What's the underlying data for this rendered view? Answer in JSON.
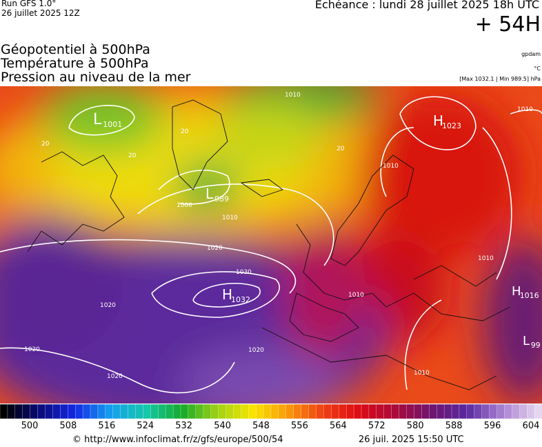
{
  "header": {
    "run": "Run GFS 1.0°",
    "run_date": "26 juillet 2025 12Z",
    "valid_time": "Echéance : lundi 28 juillet 2025 18h UTC",
    "lead": "+ 54H",
    "fields": [
      "Géopotentiel à 500hPa",
      "Température à 500hPa",
      "Pression au niveau de la mer"
    ],
    "units": [
      "gpdam",
      "°C",
      "[Max 1032.1 | Min 989.5] hPa"
    ]
  },
  "map": {
    "centers": [
      {
        "letter": "L",
        "value": "1001"
      },
      {
        "letter": "L",
        "value": "989"
      },
      {
        "letter": "H",
        "value": "1023"
      },
      {
        "letter": "H",
        "value": "1032"
      },
      {
        "letter": "H",
        "value": "1016"
      },
      {
        "letter": "L",
        "value": "99"
      }
    ],
    "isobar_labels": [
      "1000",
      "1010",
      "1020",
      "1030",
      "1010",
      "1020",
      "1020",
      "1020",
      "1010",
      "1010",
      "1010",
      "1010",
      "1020",
      "1010",
      "20",
      "20",
      "20",
      "20"
    ]
  },
  "colorbar": {
    "labels": [
      "500",
      "508",
      "516",
      "524",
      "532",
      "540",
      "548",
      "556",
      "564",
      "572",
      "580",
      "588",
      "596",
      "604"
    ]
  },
  "footer": {
    "source": "© http://www.infoclimat.fr/z/gfs/europe/500/54",
    "generated": "26 juil. 2025 15:50 UTC"
  }
}
